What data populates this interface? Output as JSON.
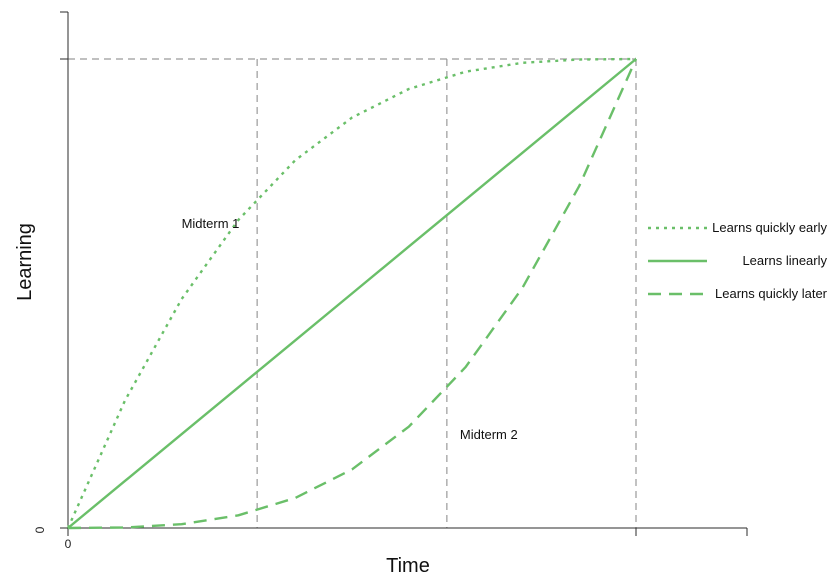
{
  "chart_data": {
    "type": "line",
    "title": "",
    "xlabel": "Time",
    "ylabel": "Learning",
    "xlim": [
      0,
      1.18
    ],
    "ylim": [
      0,
      1.1
    ],
    "x_tick_labels": [
      "0"
    ],
    "y_tick_labels": [
      "0"
    ],
    "grid": false,
    "legend_position": "right",
    "x": [
      0,
      0.1,
      0.2,
      0.3,
      0.4,
      0.5,
      0.6,
      0.7,
      0.8,
      0.9,
      1.0
    ],
    "series": [
      {
        "name": "Learns quickly early",
        "style": "dotted",
        "color": "#6abf69",
        "values": [
          0,
          0.271,
          0.488,
          0.657,
          0.784,
          0.875,
          0.936,
          0.973,
          0.992,
          0.999,
          1.0
        ]
      },
      {
        "name": "Learns linearly",
        "style": "solid",
        "color": "#6abf69",
        "values": [
          0,
          0.1,
          0.2,
          0.3,
          0.4,
          0.5,
          0.6,
          0.7,
          0.8,
          0.9,
          1.0
        ]
      },
      {
        "name": "Learns quickly later",
        "style": "dashed",
        "color": "#6abf69",
        "values": [
          0,
          0.001,
          0.008,
          0.027,
          0.064,
          0.125,
          0.216,
          0.343,
          0.512,
          0.729,
          1.0
        ]
      }
    ],
    "reference_lines": {
      "vertical_x": [
        0.333,
        0.667,
        1.0
      ],
      "horizontal_y": [
        1.0
      ],
      "color": "#9a9a9a",
      "style": "dashed"
    },
    "annotations": [
      {
        "text": "Midterm 1",
        "x": 0.2,
        "y": 0.64
      },
      {
        "text": "Midterm 2",
        "x": 0.69,
        "y": 0.19
      }
    ]
  }
}
